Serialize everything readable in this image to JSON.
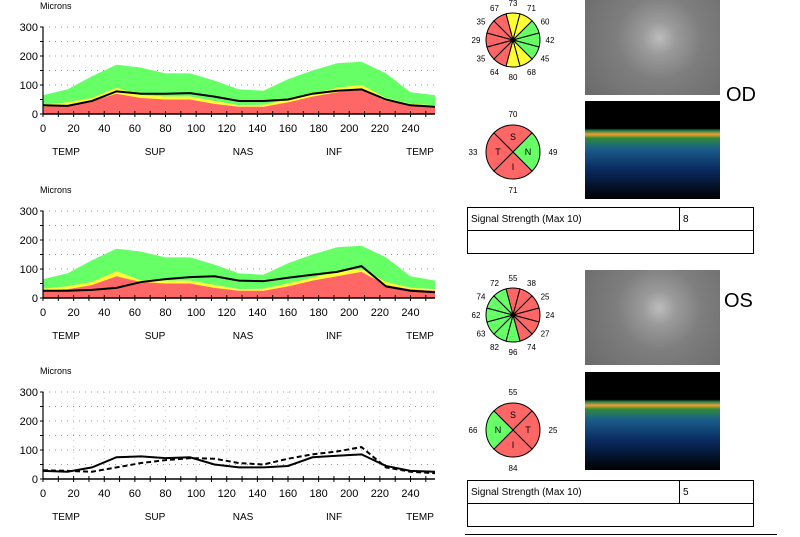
{
  "colors": {
    "normal": "#66ff66",
    "borderline": "#ffff33",
    "outside": "#ff6666",
    "line": "#000000"
  },
  "chart_data": [
    {
      "type": "area",
      "ylabel": "Microns",
      "ylim": [
        0,
        300
      ],
      "yticks": [
        "0",
        "100",
        "200",
        "300"
      ],
      "xlim": [
        0,
        256
      ],
      "xticks": [
        "0",
        "20",
        "40",
        "60",
        "80",
        "100",
        "120",
        "140",
        "160",
        "180",
        "200",
        "220",
        "240"
      ],
      "sector_labels": [
        "TEMP",
        "SUP",
        "NAS",
        "INF",
        "TEMP"
      ],
      "x": [
        0,
        16,
        32,
        48,
        64,
        80,
        96,
        112,
        128,
        144,
        160,
        176,
        192,
        208,
        224,
        240,
        256
      ],
      "bands": {
        "red_upper": [
          25,
          30,
          45,
          70,
          55,
          50,
          50,
          35,
          25,
          25,
          40,
          60,
          75,
          85,
          45,
          30,
          25
        ],
        "yellow_upper": [
          32,
          40,
          55,
          90,
          65,
          60,
          60,
          45,
          30,
          32,
          50,
          70,
          90,
          100,
          55,
          35,
          30
        ],
        "green_upper": [
          65,
          85,
          130,
          170,
          160,
          140,
          140,
          115,
          85,
          80,
          120,
          150,
          175,
          180,
          140,
          75,
          65
        ]
      },
      "series": [
        {
          "values": [
            30,
            28,
            45,
            78,
            70,
            70,
            72,
            60,
            45,
            45,
            50,
            70,
            80,
            85,
            50,
            30,
            25
          ],
          "style": "solid"
        }
      ]
    },
    {
      "type": "area",
      "ylabel": "Microns",
      "ylim": [
        0,
        300
      ],
      "yticks": [
        "0",
        "100",
        "200",
        "300"
      ],
      "xlim": [
        0,
        256
      ],
      "xticks": [
        "0",
        "20",
        "40",
        "60",
        "80",
        "100",
        "120",
        "140",
        "160",
        "180",
        "200",
        "220",
        "240"
      ],
      "sector_labels": [
        "TEMP",
        "SUP",
        "NAS",
        "INF",
        "TEMP"
      ],
      "x": [
        0,
        16,
        32,
        48,
        64,
        80,
        96,
        112,
        128,
        144,
        160,
        176,
        192,
        208,
        224,
        240,
        256
      ],
      "bands": {
        "red_upper": [
          25,
          30,
          45,
          75,
          55,
          50,
          50,
          35,
          25,
          25,
          40,
          60,
          75,
          90,
          45,
          30,
          25
        ],
        "yellow_upper": [
          32,
          40,
          55,
          92,
          60,
          60,
          60,
          45,
          30,
          32,
          50,
          70,
          90,
          100,
          55,
          35,
          30
        ],
        "green_upper": [
          65,
          85,
          130,
          170,
          160,
          140,
          140,
          115,
          85,
          80,
          120,
          150,
          175,
          180,
          140,
          75,
          60
        ]
      },
      "series": [
        {
          "values": [
            25,
            25,
            28,
            35,
            55,
            65,
            72,
            75,
            60,
            58,
            70,
            80,
            90,
            110,
            40,
            25,
            20
          ],
          "style": "solid"
        }
      ]
    },
    {
      "type": "line",
      "ylabel": "Microns",
      "ylim": [
        0,
        300
      ],
      "yticks": [
        "0",
        "100",
        "200",
        "300"
      ],
      "xlim": [
        0,
        256
      ],
      "xticks": [
        "0",
        "20",
        "40",
        "60",
        "80",
        "100",
        "120",
        "140",
        "160",
        "180",
        "200",
        "220",
        "240"
      ],
      "sector_labels": [
        "TEMP",
        "SUP",
        "NAS",
        "INF",
        "TEMP"
      ],
      "grid": true,
      "x": [
        0,
        16,
        32,
        48,
        64,
        80,
        96,
        112,
        128,
        144,
        160,
        176,
        192,
        208,
        224,
        240,
        256
      ],
      "series": [
        {
          "values": [
            28,
            25,
            40,
            75,
            78,
            72,
            75,
            50,
            40,
            40,
            45,
            75,
            80,
            85,
            45,
            28,
            25
          ],
          "style": "solid"
        },
        {
          "values": [
            30,
            28,
            25,
            40,
            55,
            65,
            72,
            70,
            55,
            50,
            70,
            85,
            95,
            110,
            40,
            25,
            20
          ],
          "style": "dashed"
        }
      ]
    }
  ],
  "od": {
    "label": "OD",
    "clock_values": [
      "73",
      "71",
      "60",
      "42",
      "45",
      "68",
      "80",
      "64",
      "35",
      "29",
      "35",
      "67"
    ],
    "clock_colors": [
      "borderline",
      "borderline",
      "normal",
      "normal",
      "normal",
      "borderline",
      "borderline",
      "outside",
      "outside",
      "outside",
      "outside",
      "outside"
    ],
    "quadrants": {
      "top": {
        "letter": "S",
        "value": "70",
        "color": "outside"
      },
      "right": {
        "letter": "N",
        "value": "49",
        "color": "normal"
      },
      "bottom": {
        "letter": "I",
        "value": "71",
        "color": "outside"
      },
      "left": {
        "letter": "T",
        "value": "33",
        "color": "outside"
      }
    },
    "signal_label": "Signal Strength (Max 10)",
    "signal_value": "8"
  },
  "os": {
    "label": "OS",
    "clock_values": [
      "55",
      "38",
      "25",
      "24",
      "27",
      "74",
      "96",
      "82",
      "63",
      "62",
      "74",
      "72"
    ],
    "clock_colors": [
      "outside",
      "outside",
      "outside",
      "outside",
      "outside",
      "outside",
      "normal",
      "normal",
      "normal",
      "normal",
      "normal",
      "normal"
    ],
    "quadrants": {
      "top": {
        "letter": "S",
        "value": "55",
        "color": "outside"
      },
      "right": {
        "letter": "T",
        "value": "25",
        "color": "outside"
      },
      "bottom": {
        "letter": "I",
        "value": "84",
        "color": "outside"
      },
      "left": {
        "letter": "N",
        "value": "66",
        "color": "normal"
      }
    },
    "signal_label": "Signal Strength (Max 10)",
    "signal_value": "5"
  }
}
